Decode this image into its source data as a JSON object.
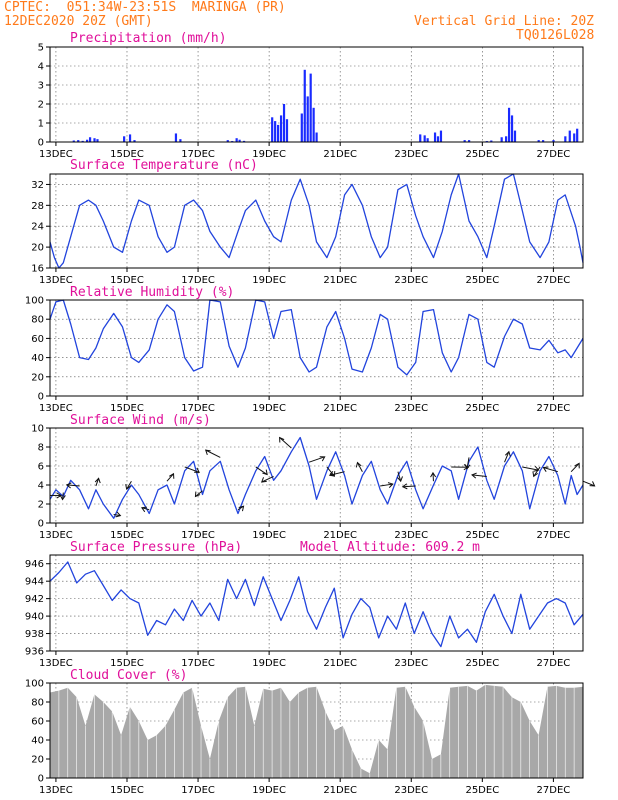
{
  "header": {
    "line1": "CPTEC:  051:34W-23:51S  MARINGA (PR)",
    "line2": "12DEC2020 20Z (GMT)",
    "grid_note": "Vertical Grid Line: 20Z",
    "code": "TQ0126L028"
  },
  "colors": {
    "line": "#2244dd",
    "bar": "#1a2bff",
    "cloud": "#a8a8a8",
    "title": "#e0109a",
    "header": "#ff7a1a"
  },
  "x_tick_labels": [
    "13DEC",
    "15DEC",
    "17DEC",
    "19DEC",
    "21DEC",
    "23DEC",
    "25DEC",
    "27DEC"
  ],
  "chart_data": [
    {
      "type": "bar",
      "title": "Precipitation (mm/h)",
      "x_unit": "hours since 12DEC2020 20Z",
      "ylim": [
        0,
        5
      ],
      "yticks": [
        0,
        1,
        2,
        3,
        4,
        5
      ],
      "x": [
        16,
        19,
        22,
        25,
        27,
        30,
        32,
        50,
        54,
        57,
        85,
        88,
        120,
        123,
        126,
        128,
        131,
        150,
        152,
        154,
        156,
        158,
        160,
        170,
        172,
        174,
        176,
        178,
        180,
        250,
        253,
        255,
        260,
        262,
        264,
        280,
        283,
        295,
        298,
        305,
        308,
        310,
        312,
        314,
        330,
        333,
        340,
        348,
        351,
        354,
        356
      ],
      "values": [
        0.08,
        0.1,
        0.06,
        0.12,
        0.25,
        0.2,
        0.15,
        0.3,
        0.4,
        0.1,
        0.45,
        0.15,
        0.1,
        0.05,
        0.2,
        0.12,
        0.06,
        1.3,
        1.1,
        0.9,
        1.4,
        2.0,
        1.2,
        1.5,
        3.8,
        2.4,
        3.6,
        1.8,
        0.5,
        0.4,
        0.35,
        0.2,
        0.5,
        0.3,
        0.6,
        0.1,
        0.1,
        0.05,
        0.08,
        0.25,
        0.3,
        1.8,
        1.4,
        0.6,
        0.1,
        0.1,
        0.1,
        0.3,
        0.6,
        0.45,
        0.7
      ]
    },
    {
      "type": "line",
      "title": "Surface Temperature (nC)",
      "x_unit": "hours since 12DEC2020 20Z",
      "ylim": [
        16,
        34
      ],
      "yticks": [
        16,
        20,
        24,
        28,
        32
      ],
      "x": [
        0,
        3,
        6,
        9,
        14,
        20,
        26,
        31,
        36,
        43,
        49,
        55,
        60,
        67,
        73,
        79,
        84,
        91,
        97,
        103,
        108,
        115,
        121,
        127,
        132,
        139,
        145,
        151,
        156,
        163,
        169,
        175,
        180,
        187,
        193,
        199,
        204,
        211,
        217,
        223,
        228,
        235,
        241,
        247,
        252,
        259,
        265,
        271,
        276,
        283,
        289,
        295,
        300,
        307,
        313,
        319,
        324,
        331,
        337,
        343,
        348,
        355,
        358,
        360
      ],
      "values": [
        21,
        18,
        16,
        17,
        22,
        28,
        29,
        28,
        25,
        20,
        19,
        25,
        29,
        28,
        22,
        19,
        20,
        28,
        29,
        27,
        23,
        20,
        18,
        23,
        27,
        29,
        25,
        22,
        21,
        29,
        33,
        28,
        21,
        18,
        22,
        30,
        32,
        28,
        22,
        18,
        20,
        31,
        32,
        26,
        22,
        18,
        23,
        30,
        34,
        25,
        22,
        18,
        24,
        33,
        34,
        27,
        21,
        18,
        21,
        29,
        30,
        24,
        20,
        17
      ]
    },
    {
      "type": "line",
      "title": "Relative Humidity (%)",
      "x_unit": "hours since 12DEC2020 20Z",
      "ylim": [
        0,
        100
      ],
      "yticks": [
        0,
        20,
        40,
        60,
        80,
        100
      ],
      "x": [
        0,
        4,
        9,
        14,
        20,
        26,
        31,
        36,
        43,
        49,
        55,
        60,
        67,
        73,
        79,
        84,
        91,
        97,
        103,
        108,
        115,
        121,
        127,
        132,
        139,
        145,
        151,
        156,
        163,
        169,
        175,
        180,
        187,
        193,
        199,
        204,
        211,
        217,
        223,
        228,
        235,
        241,
        247,
        252,
        259,
        265,
        271,
        276,
        283,
        289,
        295,
        300,
        307,
        313,
        319,
        324,
        331,
        337,
        343,
        348,
        352,
        356,
        360
      ],
      "values": [
        80,
        98,
        100,
        75,
        40,
        38,
        50,
        70,
        86,
        72,
        40,
        35,
        48,
        80,
        95,
        88,
        40,
        26,
        30,
        100,
        98,
        52,
        30,
        50,
        100,
        98,
        60,
        88,
        90,
        40,
        25,
        30,
        72,
        88,
        60,
        28,
        25,
        50,
        85,
        80,
        30,
        22,
        35,
        88,
        90,
        45,
        25,
        40,
        85,
        80,
        35,
        30,
        62,
        80,
        75,
        50,
        48,
        58,
        45,
        48,
        40,
        50,
        60
      ]
    },
    {
      "type": "line",
      "title": "Surface Wind (m/s)",
      "x_unit": "hours since 12DEC2020 20Z",
      "ylim": [
        0,
        10
      ],
      "yticks": [
        0,
        2,
        4,
        6,
        8,
        10
      ],
      "x": [
        0,
        4,
        9,
        14,
        20,
        26,
        31,
        36,
        43,
        49,
        55,
        60,
        67,
        73,
        79,
        84,
        91,
        97,
        103,
        108,
        115,
        121,
        127,
        132,
        139,
        145,
        151,
        156,
        163,
        169,
        175,
        180,
        187,
        193,
        199,
        204,
        211,
        217,
        223,
        228,
        235,
        241,
        247,
        252,
        259,
        265,
        271,
        276,
        283,
        289,
        295,
        300,
        307,
        313,
        319,
        324,
        331,
        337,
        343,
        348,
        352,
        356,
        360
      ],
      "values": [
        2.5,
        3.5,
        2.8,
        4.5,
        3.5,
        1.5,
        3.5,
        2.0,
        0.5,
        2.5,
        4.0,
        3.0,
        1.0,
        3.5,
        4.0,
        2.0,
        5.5,
        6.5,
        3.0,
        5.5,
        6.5,
        3.5,
        1.0,
        3.0,
        5.5,
        7.0,
        4.5,
        5.5,
        7.5,
        9.0,
        6.0,
        2.5,
        5.5,
        7.5,
        5.0,
        2.0,
        5.0,
        6.5,
        3.5,
        2.0,
        5.0,
        6.5,
        3.5,
        1.5,
        4.0,
        6.0,
        5.5,
        2.5,
        6.5,
        8.0,
        4.5,
        2.5,
        6.0,
        7.5,
        5.5,
        1.5,
        5.5,
        7.0,
        5.0,
        2.0,
        5.0,
        3.0,
        4.0
      ],
      "annotations": "wind barbs (direction arrows) every 6 h"
    },
    {
      "type": "line",
      "title": "Surface Pressure (hPa)",
      "subtitle": "Model Altitude: 609.2 m",
      "x_unit": "hours since 12DEC2020 20Z",
      "ylim": [
        936,
        947
      ],
      "yticks": [
        936,
        938,
        940,
        942,
        944,
        946
      ],
      "x": [
        0,
        6,
        12,
        18,
        24,
        30,
        36,
        42,
        48,
        54,
        60,
        66,
        72,
        78,
        84,
        90,
        96,
        102,
        108,
        114,
        120,
        126,
        132,
        138,
        144,
        150,
        156,
        162,
        168,
        174,
        180,
        186,
        192,
        198,
        204,
        210,
        216,
        222,
        228,
        234,
        240,
        246,
        252,
        258,
        264,
        270,
        276,
        282,
        288,
        294,
        300,
        306,
        312,
        318,
        324,
        330,
        336,
        342,
        348,
        354,
        360
      ],
      "values": [
        944,
        945,
        946.2,
        943.8,
        944.8,
        945.2,
        943.5,
        941.8,
        943,
        942,
        941.5,
        937.8,
        939.5,
        939,
        940.8,
        939.5,
        941.8,
        940,
        941.5,
        939.5,
        944.2,
        942,
        944.2,
        941.2,
        944.5,
        942,
        939.5,
        941.8,
        944.5,
        940.5,
        938.5,
        941,
        943.2,
        937.5,
        940.2,
        942,
        941,
        937.5,
        940,
        938.5,
        941.5,
        938,
        940.5,
        938,
        936.5,
        940,
        937.5,
        938.5,
        937,
        940.5,
        942.5,
        940,
        938,
        942.5,
        938.5,
        940,
        941.5,
        942,
        941.5,
        939,
        940.2
      ]
    },
    {
      "type": "area",
      "title": "Cloud Cover (%)",
      "x_unit": "hours since 12DEC2020 20Z",
      "ylim": [
        0,
        100
      ],
      "yticks": [
        0,
        20,
        40,
        60,
        80,
        100
      ],
      "x": [
        0,
        6,
        12,
        18,
        24,
        30,
        36,
        42,
        48,
        54,
        60,
        66,
        72,
        78,
        84,
        90,
        96,
        102,
        108,
        114,
        120,
        126,
        132,
        138,
        144,
        150,
        156,
        162,
        168,
        174,
        180,
        186,
        192,
        198,
        204,
        210,
        216,
        222,
        228,
        234,
        240,
        246,
        252,
        258,
        264,
        270,
        276,
        282,
        288,
        294,
        300,
        306,
        312,
        318,
        324,
        330,
        336,
        342,
        348,
        354,
        360
      ],
      "values": [
        90,
        92,
        95,
        85,
        55,
        88,
        80,
        70,
        45,
        75,
        60,
        40,
        45,
        55,
        72,
        90,
        95,
        55,
        20,
        60,
        85,
        95,
        96,
        55,
        94,
        92,
        95,
        80,
        90,
        95,
        96,
        70,
        50,
        55,
        30,
        10,
        5,
        40,
        30,
        95,
        96,
        75,
        60,
        20,
        25,
        95,
        96,
        97,
        92,
        98,
        97,
        96,
        85,
        80,
        60,
        45,
        96,
        97,
        95,
        95,
        96
      ]
    }
  ]
}
